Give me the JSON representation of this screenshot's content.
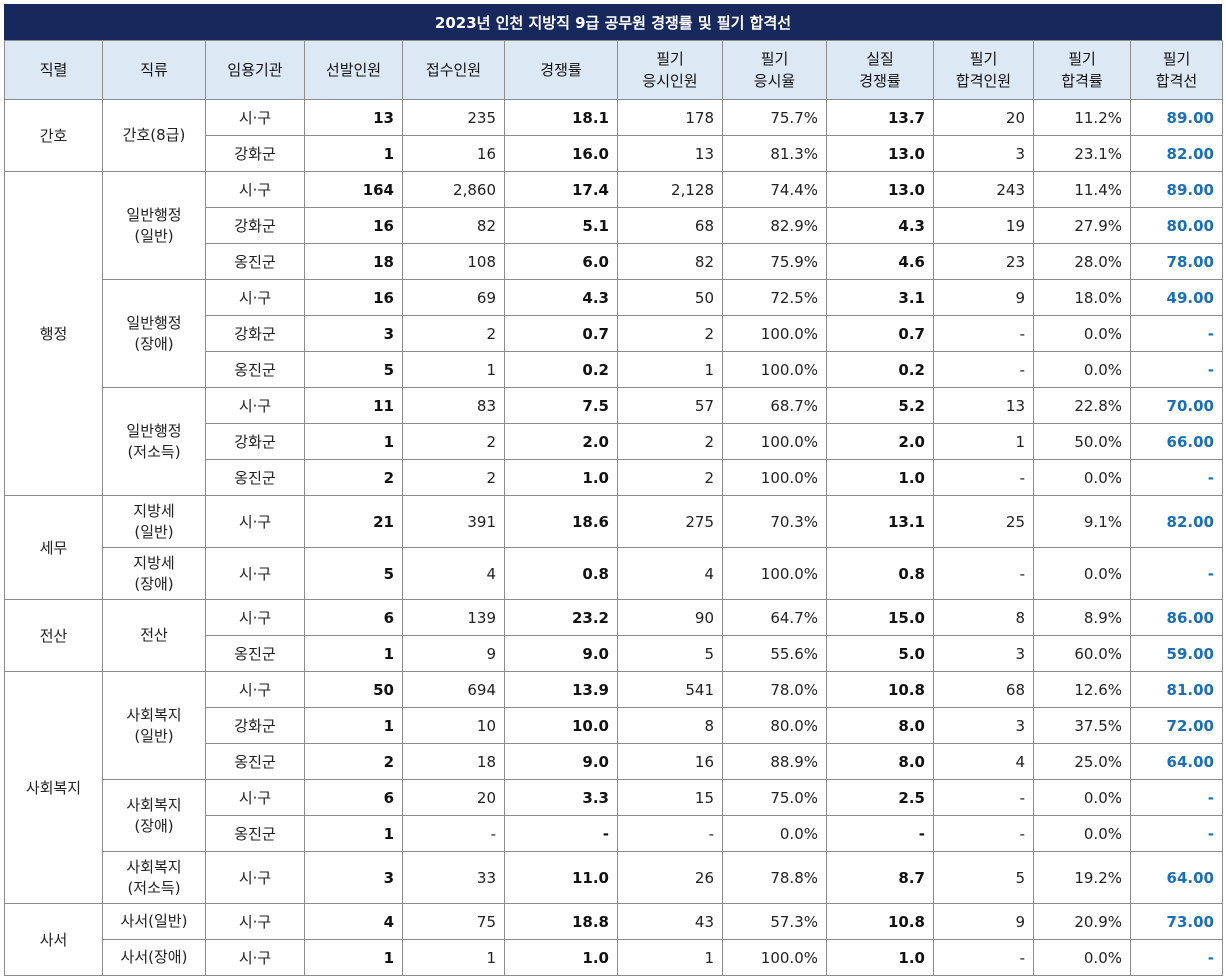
{
  "title": "2023년 인천 지방직 9급 공무원 경쟁률 및 필기 합격선",
  "header": {
    "cells": [
      [
        "직렬"
      ],
      [
        "직류"
      ],
      [
        "임용기관"
      ],
      [
        "선발인원"
      ],
      [
        "접수인원"
      ],
      [
        "경쟁률"
      ],
      [
        "필기",
        "응시인원"
      ],
      [
        "필기",
        "응시율"
      ],
      [
        "실질",
        "경쟁률"
      ],
      [
        "필기",
        "합격인원"
      ],
      [
        "필기",
        "합격률"
      ],
      [
        "필기",
        "합격선"
      ]
    ]
  },
  "rows": [
    {
      "series": "간호",
      "series_span": 2,
      "type": [
        "간호(8급)"
      ],
      "type_span": 2,
      "org": "시·구",
      "v": [
        "13",
        "235",
        "18.1",
        "178",
        "75.7%",
        "13.7",
        "20",
        "11.2%",
        "89.00"
      ]
    },
    {
      "org": "강화군",
      "v": [
        "1",
        "16",
        "16.0",
        "13",
        "81.3%",
        "13.0",
        "3",
        "23.1%",
        "82.00"
      ]
    },
    {
      "series": "행정",
      "series_span": 9,
      "type": [
        "일반행정",
        "(일반)"
      ],
      "type_span": 3,
      "org": "시·구",
      "v": [
        "164",
        "2,860",
        "17.4",
        "2,128",
        "74.4%",
        "13.0",
        "243",
        "11.4%",
        "89.00"
      ]
    },
    {
      "org": "강화군",
      "v": [
        "16",
        "82",
        "5.1",
        "68",
        "82.9%",
        "4.3",
        "19",
        "27.9%",
        "80.00"
      ]
    },
    {
      "org": "옹진군",
      "v": [
        "18",
        "108",
        "6.0",
        "82",
        "75.9%",
        "4.6",
        "23",
        "28.0%",
        "78.00"
      ]
    },
    {
      "type": [
        "일반행정",
        "(장애)"
      ],
      "type_span": 3,
      "org": "시·구",
      "v": [
        "16",
        "69",
        "4.3",
        "50",
        "72.5%",
        "3.1",
        "9",
        "18.0%",
        "49.00"
      ]
    },
    {
      "org": "강화군",
      "v": [
        "3",
        "2",
        "0.7",
        "2",
        "100.0%",
        "0.7",
        "-",
        "0.0%",
        "-"
      ]
    },
    {
      "org": "옹진군",
      "v": [
        "5",
        "1",
        "0.2",
        "1",
        "100.0%",
        "0.2",
        "-",
        "0.0%",
        "-"
      ]
    },
    {
      "type": [
        "일반행정",
        "(저소득)"
      ],
      "type_span": 3,
      "org": "시·구",
      "v": [
        "11",
        "83",
        "7.5",
        "57",
        "68.7%",
        "5.2",
        "13",
        "22.8%",
        "70.00"
      ]
    },
    {
      "org": "강화군",
      "v": [
        "1",
        "2",
        "2.0",
        "2",
        "100.0%",
        "2.0",
        "1",
        "50.0%",
        "66.00"
      ]
    },
    {
      "org": "옹진군",
      "v": [
        "2",
        "2",
        "1.0",
        "2",
        "100.0%",
        "1.0",
        "-",
        "0.0%",
        "-"
      ]
    },
    {
      "series": "세무",
      "series_span": 2,
      "type": [
        "지방세",
        "(일반)"
      ],
      "type_span": 1,
      "tall": true,
      "org": "시·구",
      "v": [
        "21",
        "391",
        "18.6",
        "275",
        "70.3%",
        "13.1",
        "25",
        "9.1%",
        "82.00"
      ]
    },
    {
      "type": [
        "지방세",
        "(장애)"
      ],
      "type_span": 1,
      "tall": true,
      "org": "시·구",
      "v": [
        "5",
        "4",
        "0.8",
        "4",
        "100.0%",
        "0.8",
        "-",
        "0.0%",
        "-"
      ]
    },
    {
      "series": "전산",
      "series_span": 2,
      "type": [
        "전산"
      ],
      "type_span": 2,
      "org": "시·구",
      "v": [
        "6",
        "139",
        "23.2",
        "90",
        "64.7%",
        "15.0",
        "8",
        "8.9%",
        "86.00"
      ]
    },
    {
      "org": "옹진군",
      "v": [
        "1",
        "9",
        "9.0",
        "5",
        "55.6%",
        "5.0",
        "3",
        "60.0%",
        "59.00"
      ]
    },
    {
      "series": "사회복지",
      "series_span": 6,
      "type": [
        "사회복지",
        "(일반)"
      ],
      "type_span": 3,
      "org": "시·구",
      "v": [
        "50",
        "694",
        "13.9",
        "541",
        "78.0%",
        "10.8",
        "68",
        "12.6%",
        "81.00"
      ]
    },
    {
      "org": "강화군",
      "v": [
        "1",
        "10",
        "10.0",
        "8",
        "80.0%",
        "8.0",
        "3",
        "37.5%",
        "72.00"
      ]
    },
    {
      "org": "옹진군",
      "v": [
        "2",
        "18",
        "9.0",
        "16",
        "88.9%",
        "8.0",
        "4",
        "25.0%",
        "64.00"
      ]
    },
    {
      "type": [
        "사회복지",
        "(장애)"
      ],
      "type_span": 2,
      "org": "시·구",
      "v": [
        "6",
        "20",
        "3.3",
        "15",
        "75.0%",
        "2.5",
        "-",
        "0.0%",
        "-"
      ]
    },
    {
      "org": "옹진군",
      "v": [
        "1",
        "-",
        "-",
        "-",
        "0.0%",
        "-",
        "-",
        "0.0%",
        "-"
      ]
    },
    {
      "type": [
        "사회복지",
        "(저소득)"
      ],
      "type_span": 1,
      "tall": true,
      "org": "시·구",
      "v": [
        "3",
        "33",
        "11.0",
        "26",
        "78.8%",
        "8.7",
        "5",
        "19.2%",
        "64.00"
      ]
    },
    {
      "series": "사서",
      "series_span": 2,
      "type": [
        "사서(일반)"
      ],
      "type_span": 1,
      "org": "시·구",
      "v": [
        "4",
        "75",
        "18.8",
        "43",
        "57.3%",
        "10.8",
        "9",
        "20.9%",
        "73.00"
      ]
    },
    {
      "type": [
        "사서(장애)"
      ],
      "type_span": 1,
      "org": "시·구",
      "v": [
        "1",
        "1",
        "1.0",
        "1",
        "100.0%",
        "1.0",
        "-",
        "0.0%",
        "-"
      ]
    }
  ]
}
